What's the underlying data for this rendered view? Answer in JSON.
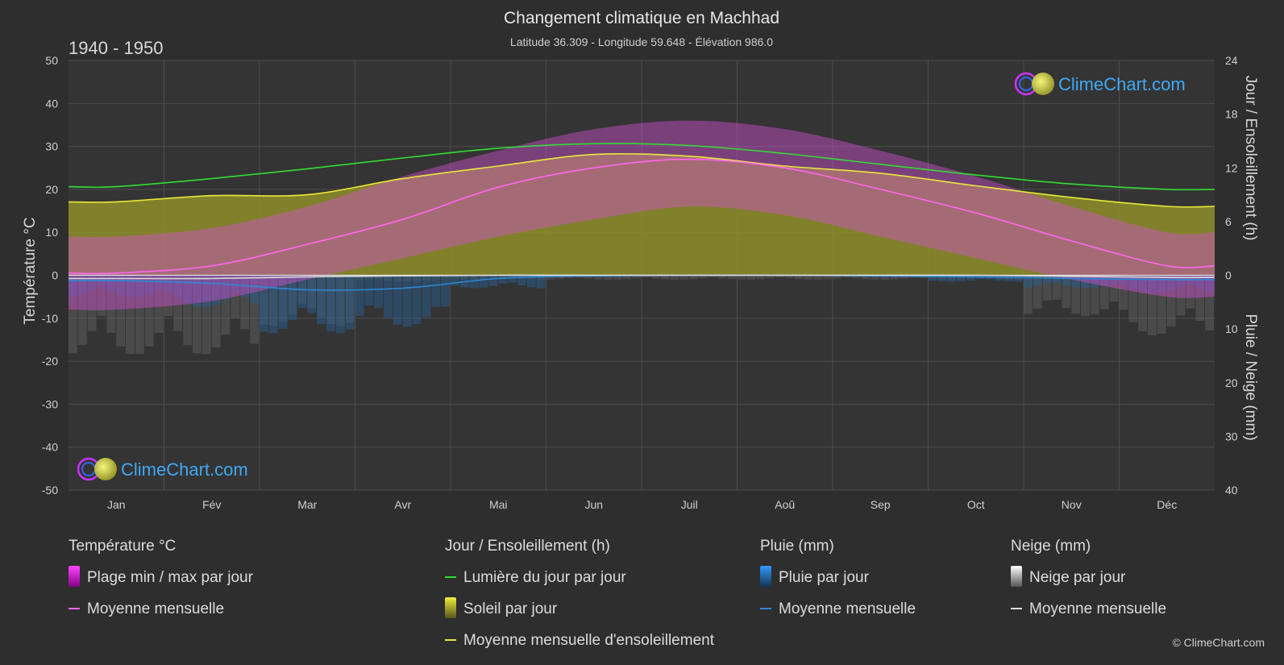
{
  "chart_data": {
    "type": "area",
    "title": "Changement climatique en Machhad",
    "subtitle": "Latitude 36.309 - Longitude 59.648 - Élévation 986.0",
    "period": "1940 - 1950",
    "categories": [
      "Jan",
      "Fév",
      "Mar",
      "Avr",
      "Mai",
      "Jun",
      "Juil",
      "Aoû",
      "Sep",
      "Oct",
      "Nov",
      "Déc"
    ],
    "y_left": {
      "label": "Température °C",
      "min": -50,
      "max": 50,
      "ticks": [
        "50",
        "40",
        "30",
        "20",
        "10",
        "0",
        "-10",
        "-20",
        "-30",
        "-40",
        "-50"
      ]
    },
    "y_right_top": {
      "label": "Jour / Ensoleillement (h)",
      "min": 0,
      "max": 24,
      "ticks": [
        "24",
        "18",
        "12",
        "6",
        "0"
      ]
    },
    "y_right_bottom": {
      "label": "Pluie / Neige (mm)",
      "min": 0,
      "max": 40,
      "ticks": [
        "10",
        "20",
        "30",
        "40"
      ]
    },
    "series": [
      {
        "name": "Lumière du jour par jour",
        "unit": "h",
        "color": "#33dd33",
        "values": [
          9.9,
          10.8,
          11.9,
          13.1,
          14.2,
          14.7,
          14.5,
          13.6,
          12.4,
          11.2,
          10.2,
          9.6
        ]
      },
      {
        "name": "Moyenne mensuelle d'ensoleillement",
        "unit": "h",
        "color": "#e8e83a",
        "values": [
          8.2,
          8.9,
          9.0,
          10.8,
          12.2,
          13.5,
          13.3,
          12.2,
          11.4,
          10.0,
          8.7,
          7.7
        ]
      },
      {
        "name": "Moyenne mensuelle",
        "group": "Température °C",
        "unit": "°C",
        "color": "#ff66ee",
        "values": [
          0.5,
          2.2,
          7.2,
          13.0,
          20.5,
          25.0,
          27.0,
          25.0,
          20.0,
          14.5,
          8.0,
          2.2
        ]
      },
      {
        "name": "Plage min / max par jour",
        "group": "Température °C",
        "unit": "°C",
        "color": "#cc33cc",
        "min": [
          -8,
          -6,
          -1,
          4,
          9,
          13,
          16,
          14,
          9,
          4,
          -1,
          -5
        ],
        "max": [
          9,
          11,
          16,
          23,
          29,
          34,
          36,
          34,
          29,
          23,
          16,
          10
        ]
      },
      {
        "name": "Soleil par jour",
        "unit": "h",
        "color": "#b5b53a",
        "values": [
          8.2,
          8.9,
          9.0,
          10.8,
          12.2,
          13.5,
          13.3,
          12.2,
          11.4,
          10.0,
          8.7,
          7.7
        ]
      },
      {
        "name": "Moyenne mensuelle",
        "group": "Pluie (mm)",
        "unit": "mm",
        "color": "#2b8ad8",
        "values": [
          1.0,
          1.5,
          2.7,
          2.4,
          0.6,
          0.1,
          0.0,
          0.0,
          0.1,
          0.3,
          0.6,
          0.8
        ]
      },
      {
        "name": "Moyenne mensuelle",
        "group": "Neige (mm)",
        "unit": "mm",
        "color": "#dddddd",
        "values": [
          0.6,
          0.6,
          0.3,
          0.1,
          0.0,
          0.0,
          0.0,
          0.0,
          0.0,
          0.0,
          0.2,
          0.4
        ]
      }
    ],
    "grid": true
  },
  "legend": {
    "groups": [
      {
        "title": "Température °C",
        "items": [
          {
            "label": "Plage min / max par jour",
            "kind": "swatch-magenta"
          },
          {
            "label": "Moyenne mensuelle",
            "kind": "line",
            "color": "#ff66ee"
          }
        ]
      },
      {
        "title": "Jour / Ensoleillement (h)",
        "items": [
          {
            "label": "Lumière du jour par jour",
            "kind": "line",
            "color": "#33dd33"
          },
          {
            "label": "Soleil par jour",
            "kind": "swatch-yellow"
          },
          {
            "label": "Moyenne mensuelle d'ensoleillement",
            "kind": "line",
            "color": "#e8e83a"
          }
        ]
      },
      {
        "title": "Pluie (mm)",
        "items": [
          {
            "label": "Pluie par jour",
            "kind": "swatch-blue"
          },
          {
            "label": "Moyenne mensuelle",
            "kind": "line",
            "color": "#2b8ad8"
          }
        ]
      },
      {
        "title": "Neige (mm)",
        "items": [
          {
            "label": "Neige par jour",
            "kind": "swatch-white"
          },
          {
            "label": "Moyenne mensuelle",
            "kind": "line",
            "color": "#dddddd"
          }
        ]
      }
    ]
  },
  "logo_text": "ClimeChart.com",
  "copyright": "© ClimeChart.com"
}
